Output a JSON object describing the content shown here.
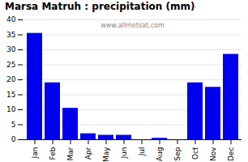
{
  "chart_data": {
    "type": "bar",
    "title": "Marsa Matruh : precipitation (mm)",
    "categories": [
      "Jan",
      "Feb",
      "Mar",
      "Apr",
      "May",
      "Jun",
      "Jul",
      "Aug",
      "Sep",
      "Oct",
      "Nov",
      "Dec"
    ],
    "values": [
      35.5,
      19.0,
      10.5,
      2.0,
      1.5,
      1.5,
      0.0,
      0.5,
      0.0,
      19.0,
      17.5,
      28.5
    ],
    "color": "#0000EE",
    "ylim": [
      0,
      40
    ],
    "yticks": [
      0,
      5,
      10,
      15,
      20,
      25,
      30,
      35,
      40
    ],
    "grid": true,
    "annotations": [
      "www.allmetsat.com"
    ]
  }
}
